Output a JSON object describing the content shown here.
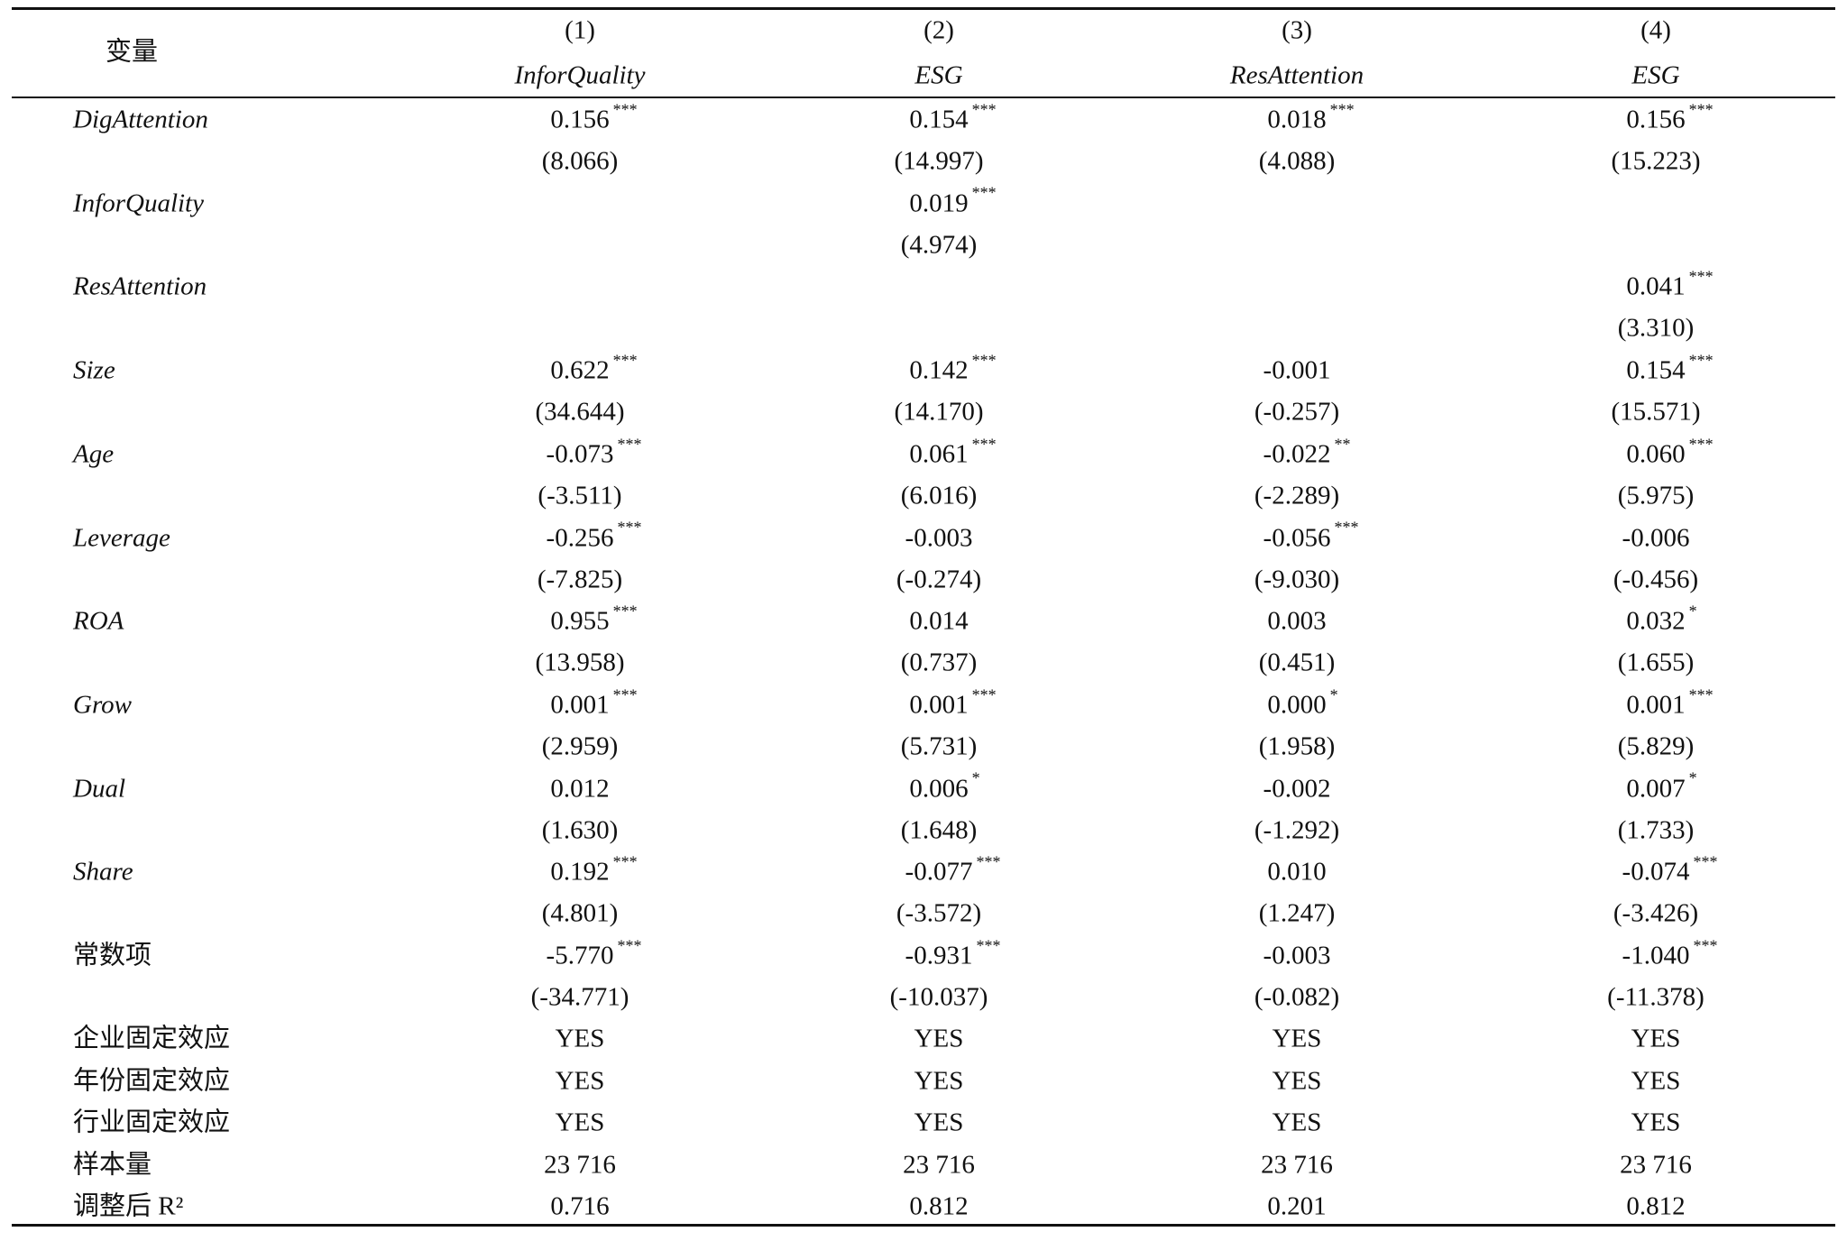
{
  "table": {
    "header": {
      "variable_label": "变量",
      "columns": [
        {
          "number": "(1)",
          "name": "InforQuality"
        },
        {
          "number": "(2)",
          "name": "ESG"
        },
        {
          "number": "(3)",
          "name": "ResAttention"
        },
        {
          "number": "(4)",
          "name": "ESG"
        }
      ]
    },
    "rows": [
      {
        "variable": "DigAttention",
        "italic": true,
        "coefficients": [
          {
            "value": "0.156",
            "stars": "***"
          },
          {
            "value": "0.154",
            "stars": "***"
          },
          {
            "value": "0.018",
            "stars": "***"
          },
          {
            "value": "0.156",
            "stars": "***"
          }
        ],
        "t_stats": [
          "(8.066)",
          "(14.997)",
          "(4.088)",
          "(15.223)"
        ]
      },
      {
        "variable": "InforQuality",
        "italic": true,
        "coefficients": [
          null,
          {
            "value": "0.019",
            "stars": "***"
          },
          null,
          null
        ],
        "t_stats": [
          null,
          "(4.974)",
          null,
          null
        ]
      },
      {
        "variable": "ResAttention",
        "italic": true,
        "coefficients": [
          null,
          null,
          null,
          {
            "value": "0.041",
            "stars": "***"
          }
        ],
        "t_stats": [
          null,
          null,
          null,
          "(3.310)"
        ]
      },
      {
        "variable": "Size",
        "italic": true,
        "coefficients": [
          {
            "value": "0.622",
            "stars": "***"
          },
          {
            "value": "0.142",
            "stars": "***"
          },
          {
            "value": "-0.001"
          },
          {
            "value": "0.154",
            "stars": "***"
          }
        ],
        "t_stats": [
          "(34.644)",
          "(14.170)",
          "(-0.257)",
          "(15.571)"
        ]
      },
      {
        "variable": "Age",
        "italic": true,
        "coefficients": [
          {
            "value": "-0.073",
            "stars": "***"
          },
          {
            "value": "0.061",
            "stars": "***"
          },
          {
            "value": "-0.022",
            "stars": "**"
          },
          {
            "value": "0.060",
            "stars": "***"
          }
        ],
        "t_stats": [
          "(-3.511)",
          "(6.016)",
          "(-2.289)",
          "(5.975)"
        ]
      },
      {
        "variable": "Leverage",
        "italic": true,
        "coefficients": [
          {
            "value": "-0.256",
            "stars": "***"
          },
          {
            "value": "-0.003"
          },
          {
            "value": "-0.056",
            "stars": "***"
          },
          {
            "value": "-0.006"
          }
        ],
        "t_stats": [
          "(-7.825)",
          "(-0.274)",
          "(-9.030)",
          "(-0.456)"
        ]
      },
      {
        "variable": "ROA",
        "italic": true,
        "coefficients": [
          {
            "value": "0.955",
            "stars": "***"
          },
          {
            "value": "0.014"
          },
          {
            "value": "0.003"
          },
          {
            "value": "0.032",
            "stars": "*"
          }
        ],
        "t_stats": [
          "(13.958)",
          "(0.737)",
          "(0.451)",
          "(1.655)"
        ]
      },
      {
        "variable": "Grow",
        "italic": true,
        "coefficients": [
          {
            "value": "0.001",
            "stars": "***"
          },
          {
            "value": "0.001",
            "stars": "***"
          },
          {
            "value": "0.000",
            "stars": "*"
          },
          {
            "value": "0.001",
            "stars": "***"
          }
        ],
        "t_stats": [
          "(2.959)",
          "(5.731)",
          "(1.958)",
          "(5.829)"
        ]
      },
      {
        "variable": "Dual",
        "italic": true,
        "coefficients": [
          {
            "value": "0.012"
          },
          {
            "value": "0.006",
            "stars": "*"
          },
          {
            "value": "-0.002"
          },
          {
            "value": "0.007",
            "stars": "*"
          }
        ],
        "t_stats": [
          "(1.630)",
          "(1.648)",
          "(-1.292)",
          "(1.733)"
        ]
      },
      {
        "variable": "Share",
        "italic": true,
        "coefficients": [
          {
            "value": "0.192",
            "stars": "***"
          },
          {
            "value": "-0.077",
            "stars": "***"
          },
          {
            "value": "0.010"
          },
          {
            "value": "-0.074",
            "stars": "***"
          }
        ],
        "t_stats": [
          "(4.801)",
          "(-3.572)",
          "(1.247)",
          "(-3.426)"
        ]
      },
      {
        "variable": "常数项",
        "italic": false,
        "coefficients": [
          {
            "value": "-5.770",
            "stars": "***"
          },
          {
            "value": "-0.931",
            "stars": "***"
          },
          {
            "value": "-0.003"
          },
          {
            "value": "-1.040",
            "stars": "***"
          }
        ],
        "t_stats": [
          "(-34.771)",
          "(-10.037)",
          "(-0.082)",
          "(-11.378)"
        ]
      }
    ],
    "summary_rows": [
      {
        "label": "企业固定效应",
        "values": [
          "YES",
          "YES",
          "YES",
          "YES"
        ]
      },
      {
        "label": "年份固定效应",
        "values": [
          "YES",
          "YES",
          "YES",
          "YES"
        ]
      },
      {
        "label": "行业固定效应",
        "values": [
          "YES",
          "YES",
          "YES",
          "YES"
        ]
      },
      {
        "label": "样本量",
        "values": [
          "23 716",
          "23 716",
          "23 716",
          "23 716"
        ]
      },
      {
        "label": "调整后 R²",
        "values": [
          "0.716",
          "0.812",
          "0.201",
          "0.812"
        ]
      }
    ]
  }
}
